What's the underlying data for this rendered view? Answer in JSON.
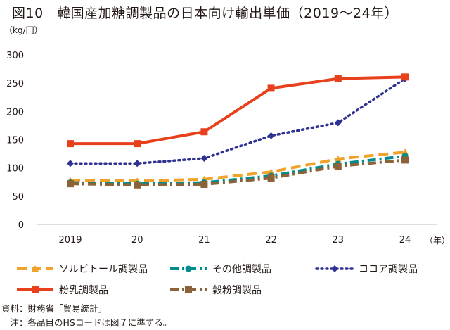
{
  "header": {
    "title": "図10　韓国産加糖調製品の日本向け輸出単価（2019～24年）",
    "y_unit": "（kg/円）",
    "x_unit": "（年）"
  },
  "chart_data": {
    "type": "line",
    "categories": [
      "2019",
      "20",
      "21",
      "22",
      "23",
      "24"
    ],
    "ylim": [
      0,
      300
    ],
    "yticks": [
      0,
      50,
      100,
      150,
      200,
      250,
      300
    ],
    "grid": false,
    "legend_position": "bottom",
    "series": [
      {
        "name": "ソルビトール調製品",
        "values": [
          78,
          77,
          80,
          93,
          116,
          128
        ],
        "color": "#f0a22a",
        "style": "dashed",
        "marker": "triangle"
      },
      {
        "name": "その他調製品",
        "values": [
          74,
          72,
          74,
          86,
          107,
          121
        ],
        "color": "#008c8c",
        "style": "dashdot",
        "marker": "circle"
      },
      {
        "name": "ココア調製品",
        "values": [
          108,
          108,
          117,
          157,
          180,
          258
        ],
        "color": "#2e3192",
        "style": "dotted",
        "marker": "diamond"
      },
      {
        "name": "粉乳調製品",
        "values": [
          143,
          143,
          164,
          241,
          258,
          261
        ],
        "color": "#e8401c",
        "style": "solid",
        "marker": "square"
      },
      {
        "name": "穀粉調製品",
        "values": [
          72,
          70,
          71,
          82,
          103,
          114
        ],
        "color": "#8c6239",
        "style": "dashdot",
        "marker": "square"
      }
    ]
  },
  "notes": {
    "source": "資料：財務省「貿易統計」",
    "note": "　注：各品目のHSコードは図７に準ずる。"
  }
}
